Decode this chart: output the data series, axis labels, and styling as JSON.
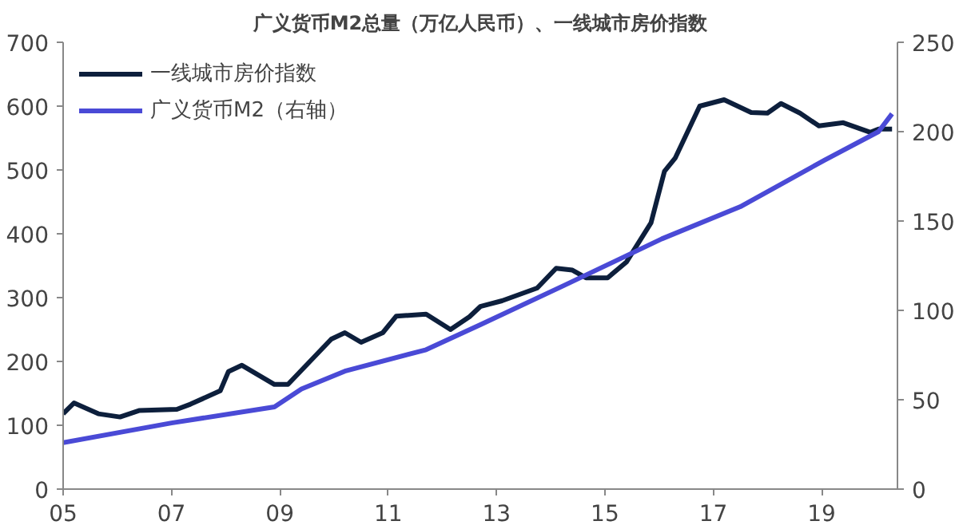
{
  "chart_data": {
    "type": "line",
    "title": "广义货币M2总量（万亿人民币）、一线城市房价指数",
    "xlim": [
      2005,
      2020.4
    ],
    "xticks": [
      {
        "value": 2005,
        "label": "05"
      },
      {
        "value": 2007,
        "label": "07"
      },
      {
        "value": 2009,
        "label": "09"
      },
      {
        "value": 2011,
        "label": "11"
      },
      {
        "value": 2013,
        "label": "13"
      },
      {
        "value": 2015,
        "label": "15"
      },
      {
        "value": 2017,
        "label": "17"
      },
      {
        "value": 2019,
        "label": "19"
      }
    ],
    "ylim": [
      0,
      700
    ],
    "yticks": [
      0,
      100,
      200,
      300,
      400,
      500,
      600,
      700
    ],
    "y2lim": [
      0,
      250
    ],
    "y2ticks": [
      0,
      50,
      100,
      150,
      200,
      250
    ],
    "grid": false,
    "legend": "top left",
    "series": [
      {
        "name": "一线城市房价指数",
        "color": "#0d1f3c",
        "x": [
          2005,
          2005.2,
          2005.65,
          2006.05,
          2006.4,
          2007.1,
          2007.35,
          2007.9,
          2008.05,
          2008.3,
          2008.9,
          2009.15,
          2009.95,
          2010.2,
          2010.5,
          2010.9,
          2011.15,
          2011.7,
          2012.15,
          2012.5,
          2012.7,
          2013.1,
          2013.75,
          2014.1,
          2014.4,
          2014.65,
          2015.05,
          2015.4,
          2015.85,
          2016.1,
          2016.3,
          2016.75,
          2017.2,
          2017.7,
          2018.0,
          2018.25,
          2018.6,
          2018.95,
          2019.4,
          2019.9,
          2020.05,
          2020.3
        ],
        "values": [
          118,
          135,
          118,
          113,
          123,
          125,
          133,
          154,
          184,
          194,
          164,
          164,
          235,
          245,
          230,
          245,
          271,
          274,
          250,
          270,
          286,
          295,
          315,
          346,
          343,
          331,
          331,
          356,
          417,
          498,
          519,
          600,
          610,
          590,
          589,
          604,
          589,
          569,
          574,
          559,
          564,
          564
        ]
      },
      {
        "name": "广义货币M2（右轴）",
        "color": "#4a4ad6",
        "axis": "y2",
        "x": [
          2005,
          2007,
          2008.9,
          2009.4,
          2010.2,
          2011.7,
          2012.7,
          2014.25,
          2016.05,
          2017.5,
          2019.05,
          2020.05,
          2020.3
        ],
        "values": [
          26,
          37,
          46,
          56,
          66,
          78,
          92,
          114,
          140,
          158,
          184,
          200,
          210
        ]
      }
    ]
  }
}
